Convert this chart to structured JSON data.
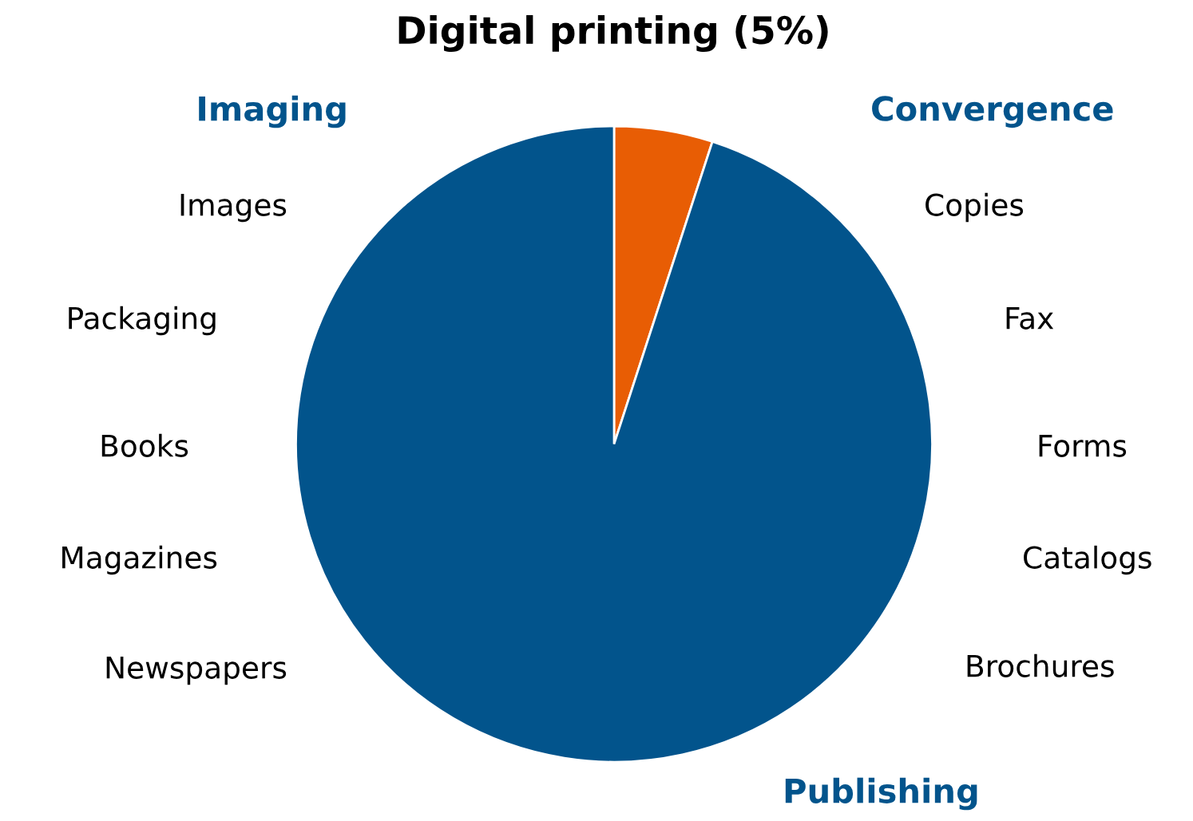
{
  "chart_data": {
    "type": "pie",
    "title": "Digital printing (5%)",
    "categories": [
      null,
      null
    ],
    "values": [
      5,
      95
    ],
    "colors": [
      "#e85d04",
      "#02548c"
    ],
    "annotations": [
      "Imaging",
      "Images",
      "Packaging",
      "Books",
      "Magazines",
      "Newspapers",
      "Convergence",
      "Copies",
      "Fax",
      "Forms",
      "Catalogs",
      "Brochures",
      "Publishing"
    ],
    "legend": false
  }
}
